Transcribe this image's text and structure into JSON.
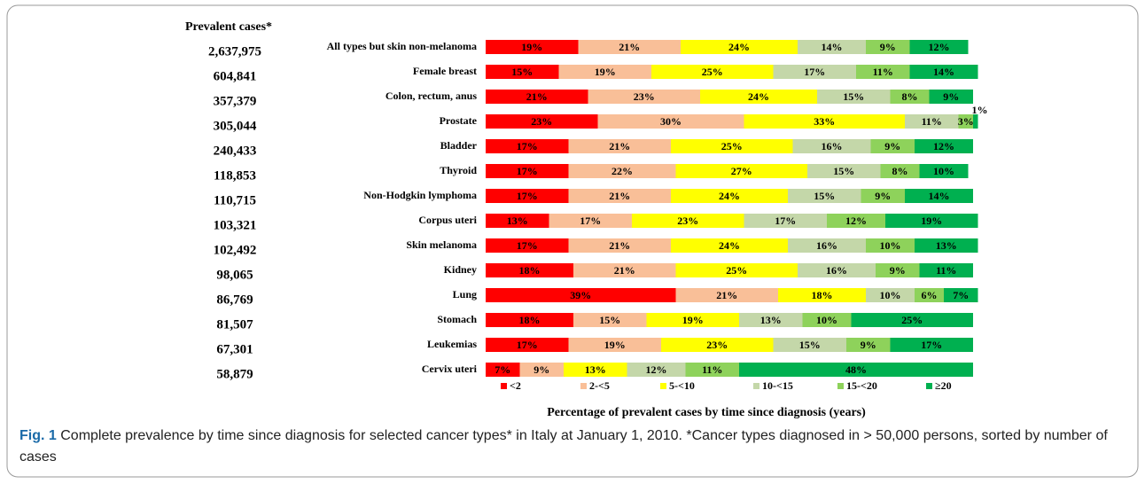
{
  "chart_data": {
    "type": "stacked-barh",
    "prevalent_header": "Prevalent cases*",
    "prevalent_cases": [
      "2,637,975",
      "604,841",
      "357,379",
      "305,044",
      "240,433",
      "118,853",
      "110,715",
      "103,321",
      "102,492",
      "98,065",
      "86,769",
      "81,507",
      "67,301",
      "58,879"
    ],
    "categories": [
      "All types but skin non-melanoma",
      "Female breast",
      "Colon, rectum, anus",
      "Prostate",
      "Bladder",
      "Thyroid",
      "Non-Hodgkin lymphoma",
      "Corpus uteri",
      "Skin melanoma",
      "Kidney",
      "Lung",
      "Stomach",
      "Leukemias",
      "Cervix uteri"
    ],
    "series": [
      {
        "name": "<2",
        "color": "#ff0000",
        "values": [
          19,
          15,
          21,
          23,
          17,
          17,
          17,
          13,
          17,
          18,
          39,
          18,
          17,
          7
        ],
        "value_labels": [
          "19%",
          "15%",
          "21%",
          "23%",
          "17%",
          "17%",
          "17%",
          "13%",
          "17%",
          "18%",
          "39%",
          "18%",
          "17%",
          "7%"
        ]
      },
      {
        "name": "2-<5",
        "color": "#f9bf98",
        "values": [
          21,
          19,
          23,
          30,
          21,
          22,
          21,
          17,
          21,
          21,
          21,
          15,
          19,
          9
        ],
        "value_labels": [
          "21%",
          "19%",
          "23%",
          "30%",
          "21%",
          "22%",
          "21%",
          "17%",
          "21%",
          "21%",
          "21%",
          "15%",
          "19%",
          "9%"
        ]
      },
      {
        "name": "5-<10",
        "color": "#ffff00",
        "values": [
          24,
          25,
          24,
          33,
          25,
          27,
          24,
          23,
          24,
          25,
          18,
          19,
          23,
          13
        ],
        "value_labels": [
          "24%",
          "25%",
          "24%",
          "33%",
          "25%",
          "27%",
          "24%",
          "23%",
          "24%",
          "25%",
          "18%",
          "19%",
          "23%",
          "13%"
        ]
      },
      {
        "name": "10-<15",
        "color": "#c4d7a9",
        "values": [
          14,
          17,
          15,
          11,
          16,
          15,
          15,
          17,
          16,
          16,
          10,
          13,
          15,
          12
        ],
        "value_labels": [
          "14%",
          "17%",
          "15%",
          "11%",
          "16%",
          "15%",
          "15%",
          "17%",
          "16%",
          "16%",
          "10%",
          "13%",
          "15%",
          "12%"
        ]
      },
      {
        "name": "15-<20",
        "color": "#8ed25b",
        "values": [
          9,
          11,
          8,
          3,
          9,
          8,
          9,
          12,
          10,
          9,
          6,
          10,
          9,
          11
        ],
        "value_labels": [
          "9%",
          "11%",
          "8%",
          "3%",
          "9%",
          "8%",
          "9%",
          "12%",
          "10%",
          "9%",
          "6%",
          "10%",
          "9%",
          "11%"
        ]
      },
      {
        "name": "≥20",
        "color": "#00b050",
        "values": [
          12,
          14,
          9,
          1,
          12,
          10,
          14,
          19,
          13,
          11,
          7,
          25,
          17,
          48
        ],
        "value_labels": [
          "12%",
          "14%",
          "9%",
          "1%",
          "12%",
          "10%",
          "14%",
          "19%",
          "13%",
          "11%",
          "7%",
          "25%",
          "17%",
          "48%"
        ]
      }
    ],
    "xlabel": "Percentage of prevalent cases by time since diagnosis (years)",
    "legend": "bottom"
  },
  "caption": {
    "label": "Fig. 1",
    "text": "Complete prevalence by time since diagnosis for selected cancer types* in Italy at January 1, 2010. *Cancer types diagnosed in > 50,000 persons, sorted by number of cases"
  }
}
